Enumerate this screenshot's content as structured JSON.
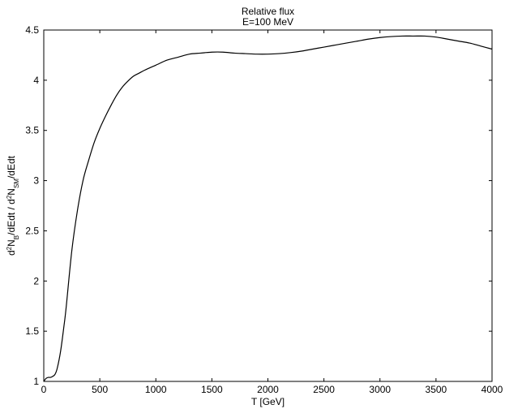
{
  "chart_data": {
    "type": "line",
    "title": "Relative flux",
    "subtitle": "E=100 MeV",
    "xlabel": "T [GeV]",
    "ylabel_parts": {
      "p1": "d",
      "sup1": "2",
      "p2": "N",
      "sub1": "B",
      "p3": "/dEdt / d",
      "sup2": "2",
      "p4": "N",
      "sub2": "SM",
      "p5": "/dEdt"
    },
    "xlim": [
      0,
      4000
    ],
    "ylim": [
      1,
      4.5
    ],
    "xticks": [
      0,
      500,
      1000,
      1500,
      2000,
      2500,
      3000,
      3500,
      4000
    ],
    "yticks": [
      1,
      1.5,
      2,
      2.5,
      3,
      3.5,
      4,
      4.5
    ],
    "xtick_labels": [
      "0",
      "500",
      "1000",
      "1500",
      "2000",
      "2500",
      "3000",
      "3500",
      "4000"
    ],
    "ytick_labels": [
      "1",
      "1.5",
      "2",
      "2.5",
      "3",
      "3.5",
      "4",
      "4.5"
    ],
    "grid": false,
    "line_color": "#000000",
    "series": [
      {
        "x": [
          0,
          20,
          40,
          60,
          80,
          100,
          120,
          150,
          180,
          200,
          250,
          300,
          350,
          400,
          450,
          500,
          550,
          600,
          650,
          700,
          750,
          800,
          850,
          900,
          1000,
          1100,
          1200,
          1300,
          1400,
          1500,
          1600,
          1700,
          1800,
          1900,
          2000,
          2100,
          2200,
          2300,
          2400,
          2500,
          2600,
          2700,
          2800,
          2900,
          3000,
          3100,
          3200,
          3300,
          3400,
          3500,
          3600,
          3700,
          3800,
          3900,
          4000
        ],
        "y": [
          1.0,
          1.03,
          1.04,
          1.04,
          1.05,
          1.07,
          1.13,
          1.3,
          1.55,
          1.74,
          2.3,
          2.7,
          3.0,
          3.2,
          3.38,
          3.52,
          3.64,
          3.75,
          3.85,
          3.93,
          3.99,
          4.04,
          4.07,
          4.1,
          4.15,
          4.2,
          4.23,
          4.26,
          4.27,
          4.28,
          4.28,
          4.27,
          4.265,
          4.26,
          4.26,
          4.265,
          4.275,
          4.29,
          4.31,
          4.33,
          4.35,
          4.37,
          4.39,
          4.41,
          4.425,
          4.435,
          4.44,
          4.44,
          4.44,
          4.43,
          4.41,
          4.39,
          4.37,
          4.34,
          4.31
        ]
      }
    ]
  }
}
